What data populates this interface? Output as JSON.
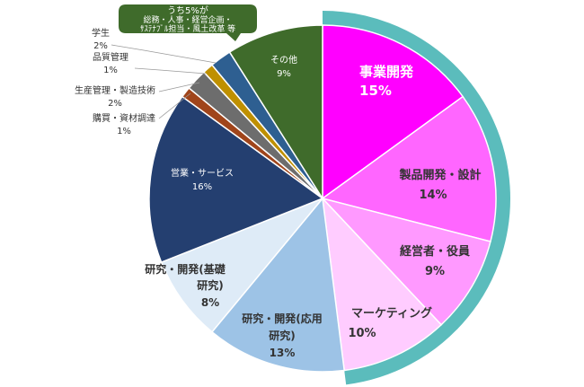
{
  "chart_data": {
    "type": "pie",
    "title": "",
    "slices": [
      {
        "label": "事業開発",
        "value": 15,
        "color": "#ff00ff"
      },
      {
        "label": "製品開発・設計",
        "value": 14,
        "color": "#ff66ff"
      },
      {
        "label": "経営者・役員",
        "value": 9,
        "color": "#ff99ff"
      },
      {
        "label": "マーケティング",
        "value": 10,
        "color": "#ffccff"
      },
      {
        "label": "研究・開発(応用研究)",
        "value": 13,
        "color": "#9dc3e6"
      },
      {
        "label": "研究・開発(基礎研究)",
        "value": 8,
        "color": "#deebf7"
      },
      {
        "label": "営業・サービス",
        "value": 16,
        "color": "#243f70"
      },
      {
        "label": "購買・資材調達",
        "value": 1,
        "color": "#a0451b"
      },
      {
        "label": "生産管理・製造技術",
        "value": 2,
        "color": "#6d6d6d"
      },
      {
        "label": "品質管理",
        "value": 1,
        "color": "#bf9000"
      },
      {
        "label": "学生",
        "value": 2,
        "color": "#2e5f91"
      },
      {
        "label": "その他",
        "value": 9,
        "color": "#3f6b2b"
      }
    ],
    "highlight_ring": {
      "color": "#5bbcbc",
      "covers": [
        "事業開発",
        "製品開発・設計",
        "経営者・役員",
        "マーケティング"
      ]
    },
    "callout": {
      "lines": [
        "うち5%が",
        "総務・人事・経営企画・",
        "ｻｽﾃﾅﾌﾞﾙ担当・風土改革 等"
      ],
      "color": "#3f6b2b"
    }
  },
  "labels": {
    "jigyo": {
      "name": "事業開発",
      "pct": "15%"
    },
    "seihin": {
      "name": "製品開発・設計",
      "pct": "14%"
    },
    "keiei": {
      "name": "経営者・役員",
      "pct": "9%"
    },
    "marketing": {
      "name": "マーケティング",
      "pct": "10%"
    },
    "ouyou": {
      "line1": "研究・開発(応用",
      "line2": "研究)",
      "pct": "13%"
    },
    "kiso": {
      "line1": "研究・開発(基礎",
      "line2": "研究)",
      "pct": "8%"
    },
    "eigyo": {
      "name": "営業・サービス",
      "pct": "16%"
    },
    "kobai": {
      "name": "購買・資材調達",
      "pct": "1%"
    },
    "seisan": {
      "name": "生産管理・製造技術",
      "pct": "2%"
    },
    "hinshitsu": {
      "name": "品質管理",
      "pct": "1%"
    },
    "gakusei": {
      "name": "学生",
      "pct": "2%"
    },
    "sonota": {
      "name": "その他",
      "pct": "9%"
    }
  }
}
